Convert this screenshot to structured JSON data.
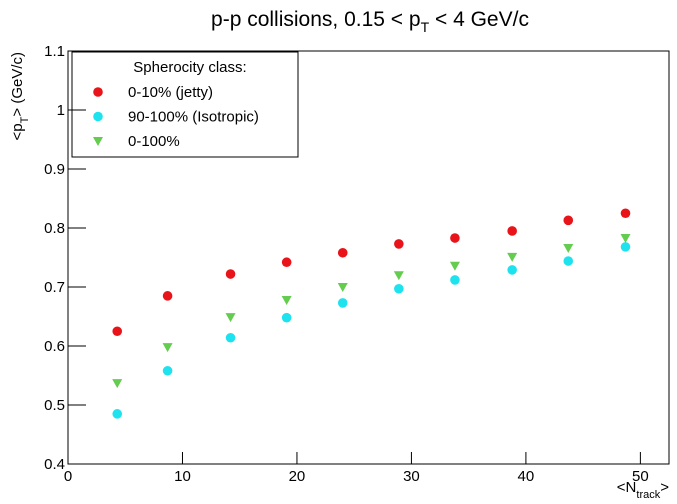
{
  "chart_data": {
    "type": "scatter",
    "title": [
      "p-p collisions, 0.15 < p",
      "T",
      " < 4 GeV/c"
    ],
    "x_label": [
      "<N",
      "track",
      ">"
    ],
    "y_label": [
      "<p",
      "T",
      "> (GeV/c)"
    ],
    "legend_title": "Spherocity class:",
    "x": [
      4.3,
      8.7,
      14.2,
      19.1,
      24,
      28.9,
      33.8,
      38.8,
      43.7,
      48.7
    ],
    "series": [
      {
        "name": "0-10% (jetty)",
        "color": "#e8141a",
        "marker": "circle",
        "values": [
          0.625,
          0.685,
          0.722,
          0.742,
          0.758,
          0.773,
          0.783,
          0.795,
          0.813,
          0.825
        ]
      },
      {
        "name": "90-100% (Isotropic)",
        "color": "#1ee3ef",
        "marker": "circle",
        "values": [
          0.485,
          0.558,
          0.614,
          0.648,
          0.673,
          0.697,
          0.712,
          0.729,
          0.744,
          0.768
        ]
      },
      {
        "name": "0-100%",
        "color": "#64cc4e",
        "marker": "triangle-down",
        "values": [
          0.537,
          0.598,
          0.649,
          0.678,
          0.7,
          0.72,
          0.736,
          0.751,
          0.766,
          0.783
        ]
      }
    ],
    "xlim": [
      0,
      52.5
    ],
    "xticks": [
      0,
      10,
      20,
      30,
      40,
      50
    ],
    "ylim": [
      0.4,
      1.1
    ],
    "yticks": [
      0.4,
      0.5,
      0.6,
      0.7,
      0.8,
      0.9,
      1,
      1.1
    ]
  }
}
